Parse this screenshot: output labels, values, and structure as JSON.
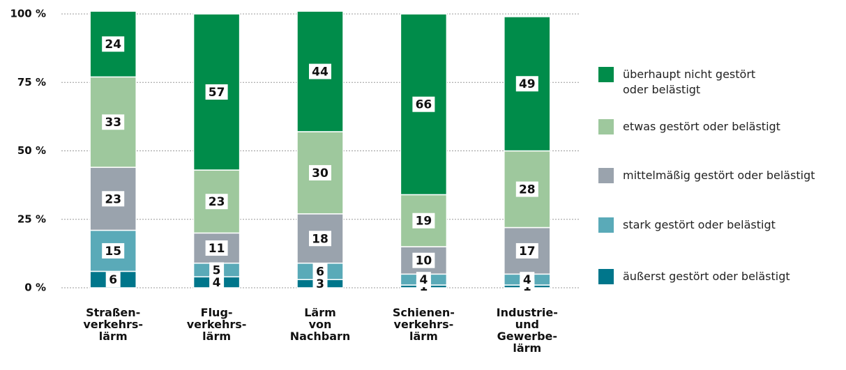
{
  "chart_data": {
    "type": "stacked_bar",
    "categories": [
      "Straßen-\nverkehrs-\nlärm",
      "Flug-\nverkehrs-\nlärm",
      "Lärm\nvon\nNachbarn",
      "Schienen-\nverkehrs-\nlärm",
      "Industrie-\nund\nGewerbe-\nlärm"
    ],
    "series": [
      {
        "name": "äußerst gestört oder belästigt",
        "color": "#00768b",
        "values": [
          6,
          4,
          3,
          1,
          1
        ]
      },
      {
        "name": "stark gestört oder belästigt",
        "color": "#5aaab8",
        "values": [
          15,
          5,
          6,
          4,
          4
        ]
      },
      {
        "name": "mittelmäßig gestört oder belästigt",
        "color": "#9aa3ad",
        "values": [
          23,
          11,
          18,
          10,
          17
        ]
      },
      {
        "name": "etwas gestört oder belästigt",
        "color": "#9ec89d",
        "values": [
          33,
          23,
          30,
          19,
          28
        ]
      },
      {
        "name": "überhaupt nicht gestört\noder belästigt",
        "color": "#008c4a",
        "values": [
          24,
          57,
          44,
          66,
          49
        ]
      }
    ],
    "ylim": [
      0,
      100
    ],
    "yticks": [
      {
        "value": 0,
        "label": "0 %"
      },
      {
        "value": 25,
        "label": "25 %"
      },
      {
        "value": 50,
        "label": "50 %"
      },
      {
        "value": 75,
        "label": "75 %"
      },
      {
        "value": 100,
        "label": "100 %"
      }
    ],
    "grid": true,
    "legend": "right"
  }
}
